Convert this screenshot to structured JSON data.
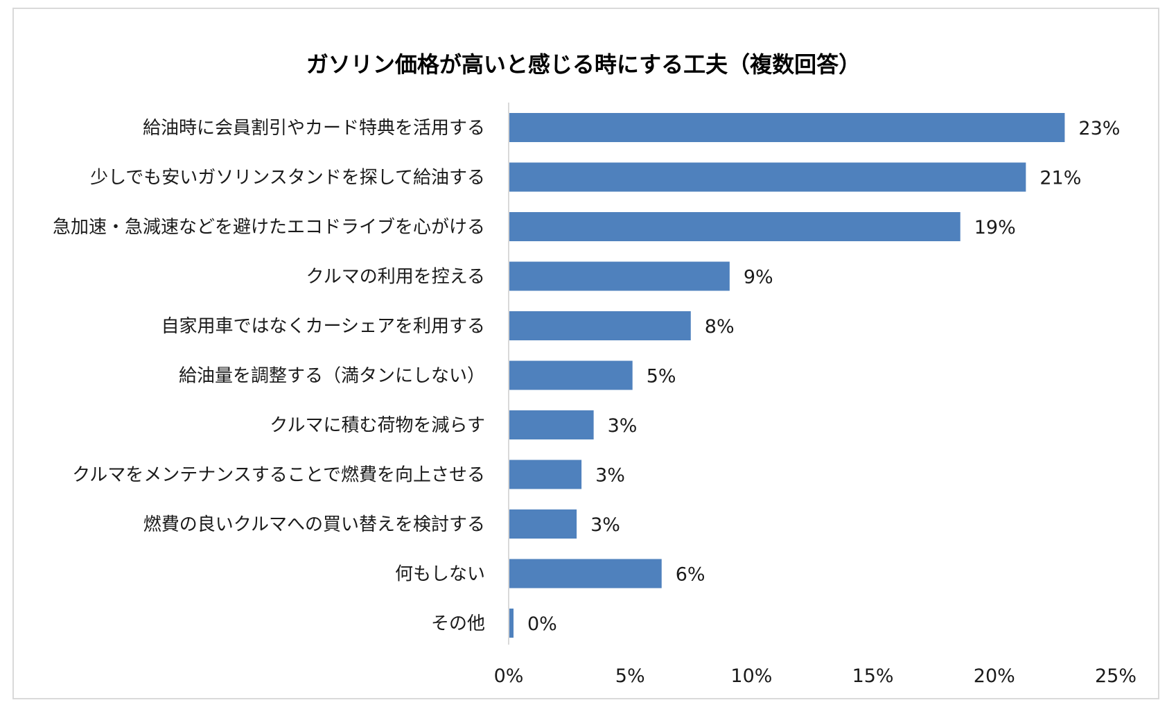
{
  "chart_data": {
    "type": "bar",
    "orientation": "horizontal",
    "title": "ガソリン価格が高いと感じる時にする工夫（複数回答）",
    "categories": [
      "給油時に会員割引やカード特典を活用する",
      "少しでも安いガソリンスタンドを探して給油する",
      "急加速・急減速などを避けたエコドライブを心がける",
      "クルマの利用を控える",
      "自家用車ではなくカーシェアを利用する",
      "給油量を調整する（満タンにしない）",
      "クルマに積む荷物を減らす",
      "クルマをメンテナンスすることで燃費を向上させる",
      "燃費の良いクルマへの買い替えを検討する",
      "何もしない",
      "その他"
    ],
    "values": [
      22.9,
      21.3,
      18.6,
      9.1,
      7.5,
      5.1,
      3.5,
      3.0,
      2.8,
      6.3,
      0.2
    ],
    "value_labels": [
      "23%",
      "21%",
      "19%",
      "9%",
      "8%",
      "5%",
      "3%",
      "3%",
      "3%",
      "6%",
      "0%"
    ],
    "xlim": [
      0,
      25
    ],
    "xticks": [
      0,
      5,
      10,
      15,
      20,
      25
    ],
    "xtick_labels": [
      "0%",
      "5%",
      "10%",
      "15%",
      "20%",
      "25%"
    ],
    "xlabel": "",
    "ylabel": "",
    "grid": false,
    "legend": "none",
    "bar_color": "#4f81bd"
  }
}
